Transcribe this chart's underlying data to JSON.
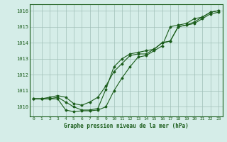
{
  "bg_color": "#d5ede8",
  "grid_color": "#a0c0b8",
  "line_color": "#1a5c1a",
  "marker_color": "#1a5c1a",
  "title": "Graphe pression niveau de la mer (hPa)",
  "hours": [
    0,
    1,
    2,
    3,
    4,
    5,
    6,
    7,
    8,
    9,
    10,
    11,
    12,
    13,
    14,
    15,
    16,
    17,
    18,
    19,
    20,
    21,
    22,
    23
  ],
  "ylim": [
    1009.4,
    1016.4
  ],
  "yticks": [
    1010,
    1011,
    1012,
    1013,
    1014,
    1015,
    1016
  ],
  "series1": [
    1010.5,
    1010.5,
    1010.6,
    1010.7,
    1010.6,
    1010.2,
    1010.1,
    1010.3,
    1010.6,
    1011.3,
    1012.2,
    1012.7,
    1013.2,
    1013.3,
    1013.3,
    1013.6,
    1014.0,
    1014.1,
    1015.0,
    1015.1,
    1015.2,
    1015.5,
    1015.8,
    1015.9
  ],
  "series2": [
    1010.5,
    1010.5,
    1010.5,
    1010.6,
    1010.3,
    1010.0,
    1009.8,
    1009.8,
    1009.9,
    1011.1,
    1012.5,
    1013.0,
    1013.3,
    1013.4,
    1013.5,
    1013.6,
    1014.0,
    1014.1,
    1015.0,
    1015.1,
    1015.3,
    1015.6,
    1015.9,
    1016.0
  ],
  "series3": [
    1010.5,
    1010.5,
    1010.5,
    1010.5,
    1009.8,
    1009.7,
    1009.75,
    1009.75,
    1009.8,
    1010.0,
    1011.0,
    1011.8,
    1012.5,
    1013.1,
    1013.2,
    1013.5,
    1013.8,
    1015.0,
    1015.1,
    1015.2,
    1015.5,
    1015.6,
    1015.9,
    1016.0
  ]
}
